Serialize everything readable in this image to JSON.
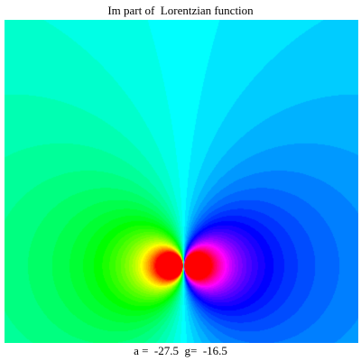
{
  "chart_data": {
    "type": "heatmap",
    "title": "Im part of  Lorentzian function",
    "caption": "a =  -27.5  g=  -16.5",
    "parameters": {
      "a": -27.5,
      "g": -16.5
    },
    "colormap": "hue",
    "grid": false
  }
}
